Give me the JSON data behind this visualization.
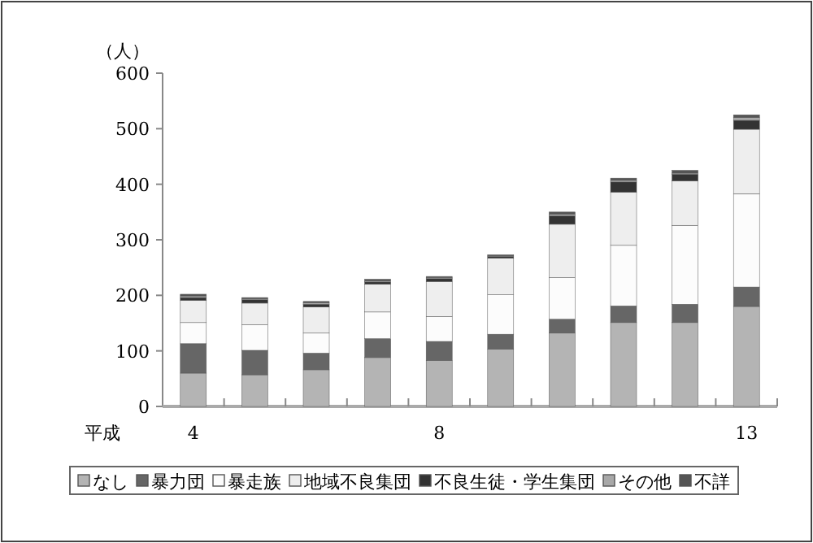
{
  "chart_data": {
    "type": "bar",
    "stacked": true,
    "xlabel": "平成",
    "ylabel": "（人）",
    "categories": [
      "4",
      null,
      null,
      null,
      "8",
      null,
      null,
      null,
      null,
      "13"
    ],
    "ylim": [
      0,
      600
    ],
    "yticks": [
      0,
      100,
      200,
      300,
      400,
      500,
      600
    ],
    "legend": "bottom",
    "series": [
      {
        "name": "なし",
        "color": "#b4b4b4",
        "values": [
          60,
          57,
          66,
          88,
          83,
          103,
          132,
          151,
          151,
          180
        ]
      },
      {
        "name": "暴力団",
        "color": "#666666",
        "values": [
          53,
          44,
          30,
          34,
          34,
          27,
          25,
          30,
          33,
          35
        ]
      },
      {
        "name": "暴走族",
        "color": "#fcfcfc",
        "values": [
          38,
          46,
          36,
          48,
          45,
          71,
          75,
          109,
          142,
          168
        ]
      },
      {
        "name": "地域不良集団",
        "color": "#eeeeee",
        "values": [
          40,
          39,
          47,
          50,
          63,
          66,
          96,
          96,
          80,
          116
        ]
      },
      {
        "name": "不良生徒・学生集団",
        "color": "#333333",
        "values": [
          5,
          6,
          5,
          4,
          5,
          3,
          15,
          18,
          12,
          16
        ]
      },
      {
        "name": "その他",
        "color": "#a8a8a8",
        "values": [
          3,
          2,
          3,
          2,
          2,
          1,
          3,
          3,
          2,
          5
        ]
      },
      {
        "name": "不詳",
        "color": "#555555",
        "values": [
          3,
          2,
          2,
          3,
          2,
          2,
          4,
          4,
          5,
          5
        ]
      }
    ]
  }
}
